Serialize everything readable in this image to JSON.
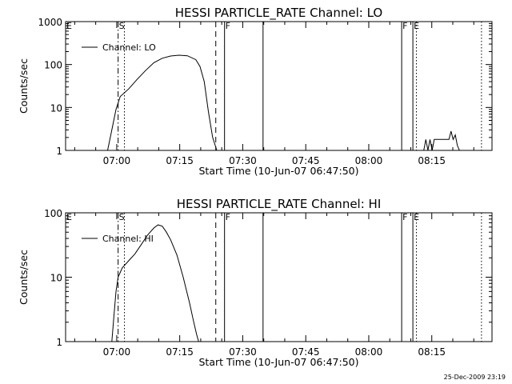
{
  "stamp": "25-Dec-2009 23:19",
  "chart_data": [
    {
      "type": "line",
      "title": "HESSI PARTICLE_RATE Channel: LO",
      "xlabel": "Start Time (10-Jun-07 06:47:50)",
      "ylabel": "Counts/sec",
      "scale_y": "log",
      "ylim": [
        1,
        1000
      ],
      "xlim": [
        "06:47:50",
        "08:29:20"
      ],
      "yticks": [
        "1",
        "10",
        "100",
        "1000"
      ],
      "xticks": [
        "07:00",
        "07:15",
        "07:30",
        "07:45",
        "08:00",
        "08:15"
      ],
      "grid": false,
      "legend_position": "top-left",
      "series": [
        {
          "name": "Channel: LO",
          "x": [
            "06:57:50",
            "06:58:50",
            "06:59:50",
            "07:00:50",
            "07:02:50",
            "07:04:50",
            "07:06:50",
            "07:08:50",
            "07:10:50",
            "07:12:50",
            "07:14:50",
            "07:16:50",
            "07:18:50",
            "07:19:50",
            "07:20:50",
            "07:21:50",
            "07:22:50",
            "07:23:50"
          ],
          "y": [
            1,
            3,
            9,
            18,
            27,
            45,
            72,
            110,
            140,
            158,
            165,
            160,
            130,
            90,
            40,
            8,
            2,
            1
          ]
        },
        {
          "name": "",
          "x": [
            "08:13:05",
            "08:13:35",
            "08:14:05",
            "08:14:35",
            "08:15:05",
            "08:15:35",
            "08:16:05",
            "08:16:35",
            "08:17:05",
            "08:17:35",
            "08:18:05",
            "08:18:35",
            "08:19:05",
            "08:19:35",
            "08:20:05",
            "08:20:35",
            "08:21:05",
            "08:21:35",
            "08:22:05"
          ],
          "y": [
            1,
            1.8,
            1,
            1.8,
            1,
            1.8,
            1.8,
            1.8,
            1.8,
            1.8,
            1.8,
            1.8,
            1.8,
            2.8,
            1.8,
            2.3,
            1.3,
            1,
            1
          ]
        }
      ],
      "markers": [
        {
          "label": "E",
          "time": "06:47:50",
          "style": "none"
        },
        {
          "label": "S",
          "time": "07:00:20",
          "style": "dashdot"
        },
        {
          "label": "",
          "time": "07:01:50",
          "style": "dotted"
        },
        {
          "label": "",
          "time": "07:23:35",
          "style": "dashed"
        },
        {
          "label": "F",
          "time": "07:25:40",
          "style": "solid"
        },
        {
          "label": "",
          "time": "07:34:50",
          "style": "solid"
        },
        {
          "label": "F",
          "time": "08:07:50",
          "style": "solid"
        },
        {
          "label": "E",
          "time": "08:10:30",
          "style": "solid"
        },
        {
          "label": "",
          "time": "08:11:20",
          "style": "dotted"
        },
        {
          "label": "",
          "time": "08:26:50",
          "style": "dotted"
        }
      ]
    },
    {
      "type": "line",
      "title": "HESSI PARTICLE_RATE Channel: HI",
      "xlabel": "Start Time (10-Jun-07 06:47:50)",
      "ylabel": "Counts/sec",
      "scale_y": "log",
      "ylim": [
        1,
        100
      ],
      "xlim": [
        "06:47:50",
        "08:29:20"
      ],
      "yticks": [
        "1",
        "10",
        "100"
      ],
      "xticks": [
        "07:00",
        "07:15",
        "07:30",
        "07:45",
        "08:00",
        "08:15"
      ],
      "grid": false,
      "legend_position": "top-left",
      "series": [
        {
          "name": "Channel: HI",
          "x": [
            "06:58:50",
            "06:59:20",
            "06:59:50",
            "07:00:20",
            "07:01:20",
            "07:02:50",
            "07:04:20",
            "07:05:50",
            "07:07:20",
            "07:08:50",
            "07:09:50",
            "07:10:50",
            "07:11:50",
            "07:12:50",
            "07:14:20",
            "07:15:50",
            "07:17:20",
            "07:18:20",
            "07:19:00",
            "07:19:30"
          ],
          "y": [
            1,
            2.5,
            6,
            10,
            14,
            18,
            23,
            32,
            45,
            58,
            65,
            62,
            50,
            38,
            22,
            10,
            4,
            2,
            1.3,
            1
          ]
        }
      ],
      "markers": [
        {
          "label": "E",
          "time": "06:47:50",
          "style": "none"
        },
        {
          "label": "S",
          "time": "07:00:20",
          "style": "dashdot"
        },
        {
          "label": "",
          "time": "07:01:50",
          "style": "dotted"
        },
        {
          "label": "",
          "time": "07:23:35",
          "style": "dashed"
        },
        {
          "label": "F",
          "time": "07:25:40",
          "style": "solid"
        },
        {
          "label": "",
          "time": "07:34:50",
          "style": "solid"
        },
        {
          "label": "F",
          "time": "08:07:50",
          "style": "solid"
        },
        {
          "label": "E",
          "time": "08:10:30",
          "style": "solid"
        },
        {
          "label": "",
          "time": "08:11:20",
          "style": "dotted"
        },
        {
          "label": "",
          "time": "08:26:50",
          "style": "dotted"
        }
      ]
    }
  ]
}
